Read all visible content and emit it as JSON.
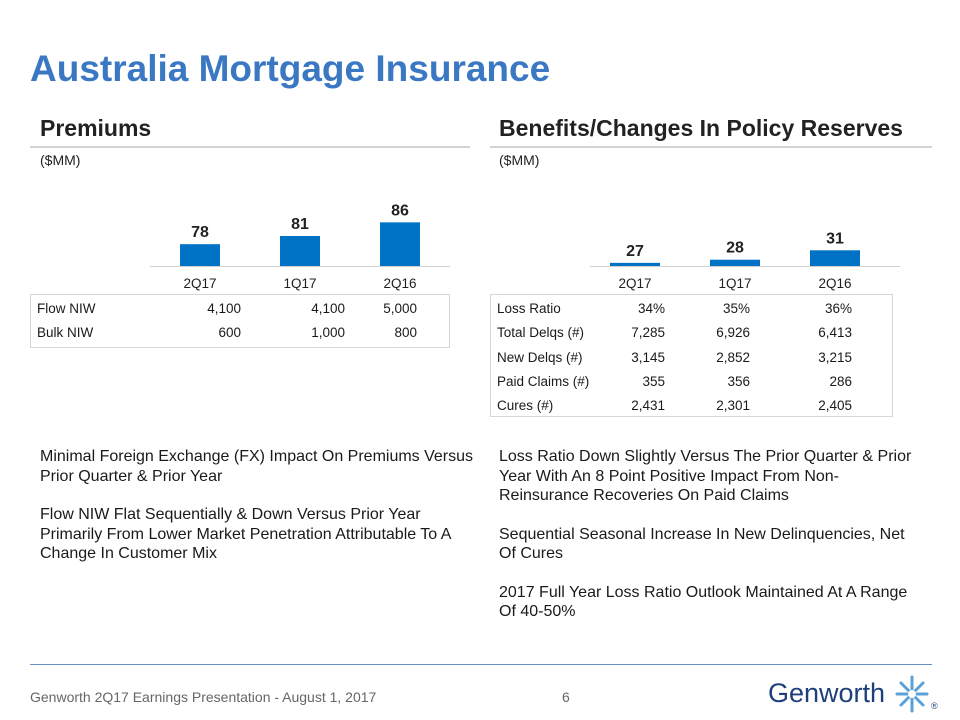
{
  "title": "Australia Mortgage Insurance",
  "premiums": {
    "heading": "Premiums",
    "unit": "($MM)",
    "chart_data": {
      "type": "bar",
      "title": "Premiums",
      "ylabel": "($MM)",
      "categories": [
        "2Q17",
        "1Q17",
        "2Q16"
      ],
      "values": [
        78,
        81,
        86
      ],
      "ylim": [
        70,
        92
      ],
      "color": "#0072c6"
    },
    "table": {
      "rows": [
        {
          "label": "Flow NIW",
          "values": [
            "4,100",
            "4,100",
            "5,000"
          ]
        },
        {
          "label": "Bulk NIW",
          "values": [
            "600",
            "1,000",
            "800"
          ]
        }
      ]
    },
    "bullets": [
      "Minimal Foreign Exchange (FX) Impact On Premiums Versus Prior Quarter & Prior Year",
      "Flow NIW Flat Sequentially & Down Versus Prior Year Primarily From Lower Market Penetration Attributable To A Change In Customer Mix"
    ]
  },
  "benefits": {
    "heading": "Benefits/Changes In Policy Reserves",
    "unit": "($MM)",
    "chart_data": {
      "type": "bar",
      "title": "Benefits/Changes In Policy Reserves",
      "ylabel": "($MM)",
      "categories": [
        "2Q17",
        "1Q17",
        "2Q16"
      ],
      "values": [
        27,
        28,
        31
      ],
      "ylim": [
        26,
        40
      ],
      "color": "#0072c6"
    },
    "table": {
      "rows": [
        {
          "label": "Loss Ratio",
          "values": [
            "34%",
            "35%",
            "36%"
          ]
        },
        {
          "label": "Total Delqs (#)",
          "values": [
            "7,285",
            "6,926",
            "6,413"
          ]
        },
        {
          "label": "New Delqs (#)",
          "values": [
            "3,145",
            "2,852",
            "3,215"
          ]
        },
        {
          "label": "Paid Claims (#)",
          "values": [
            "355",
            "356",
            "286"
          ]
        },
        {
          "label": "Cures (#)",
          "values": [
            "2,431",
            "2,301",
            "2,405"
          ]
        }
      ]
    },
    "bullets": [
      "Loss Ratio Down Slightly Versus The Prior Quarter & Prior Year With An 8 Point Positive Impact From Non-Reinsurance Recoveries On Paid Claims",
      "Sequential Seasonal Increase In New Delinquencies, Net Of Cures",
      "2017 Full Year Loss Ratio Outlook Maintained At A Range Of 40-50%"
    ]
  },
  "footer": {
    "text": "Genworth 2Q17 Earnings Presentation - August 1, 2017",
    "page": "6",
    "logo": "Genworth",
    "logo_mark": "®"
  }
}
